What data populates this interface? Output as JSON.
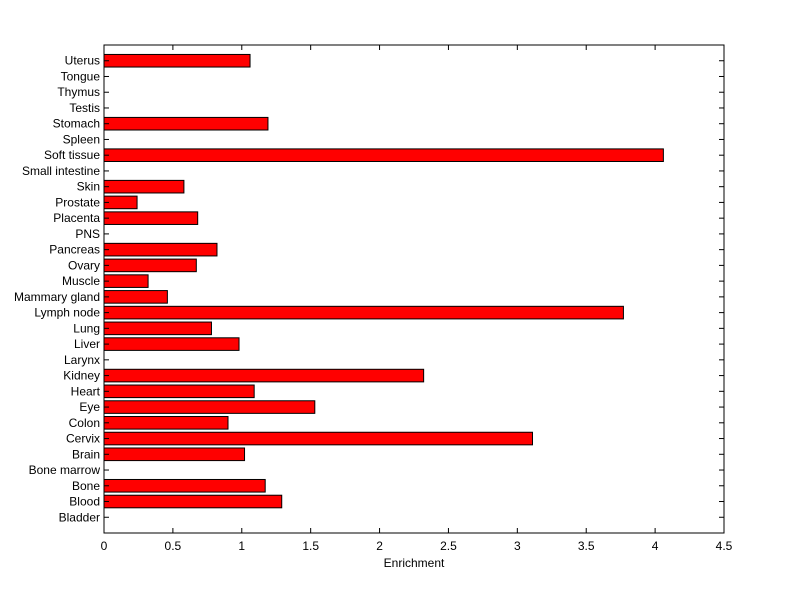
{
  "chart_data": {
    "type": "bar",
    "orientation": "horizontal",
    "title": "",
    "xlabel": "Enrichment",
    "ylabel": "",
    "xlim": [
      0,
      4.5
    ],
    "xticks": [
      0,
      0.5,
      1,
      1.5,
      2,
      2.5,
      3,
      3.5,
      4,
      4.5
    ],
    "xtick_labels": [
      "0",
      "0.5",
      "1",
      "1.5",
      "2",
      "2.5",
      "3",
      "3.5",
      "4",
      "4.5"
    ],
    "grid": false,
    "legend": "none",
    "bar_color": "#ff0000",
    "edge_color": "#000000",
    "categories": [
      "Bladder",
      "Blood",
      "Bone",
      "Bone marrow",
      "Brain",
      "Cervix",
      "Colon",
      "Eye",
      "Heart",
      "Kidney",
      "Larynx",
      "Liver",
      "Lung",
      "Lymph node",
      "Mammary gland",
      "Muscle",
      "Ovary",
      "Pancreas",
      "PNS",
      "Placenta",
      "Prostate",
      "Skin",
      "Small intestine",
      "Soft tissue",
      "Spleen",
      "Stomach",
      "Testis",
      "Thymus",
      "Tongue",
      "Uterus"
    ],
    "values": [
      0,
      1.29,
      1.17,
      0,
      1.02,
      3.11,
      0.9,
      1.53,
      1.09,
      2.32,
      0,
      0.98,
      0.78,
      3.77,
      0.46,
      0.32,
      0.67,
      0.82,
      0,
      0.68,
      0.24,
      0.58,
      0,
      4.06,
      0,
      1.19,
      0,
      0,
      0,
      1.06
    ]
  }
}
